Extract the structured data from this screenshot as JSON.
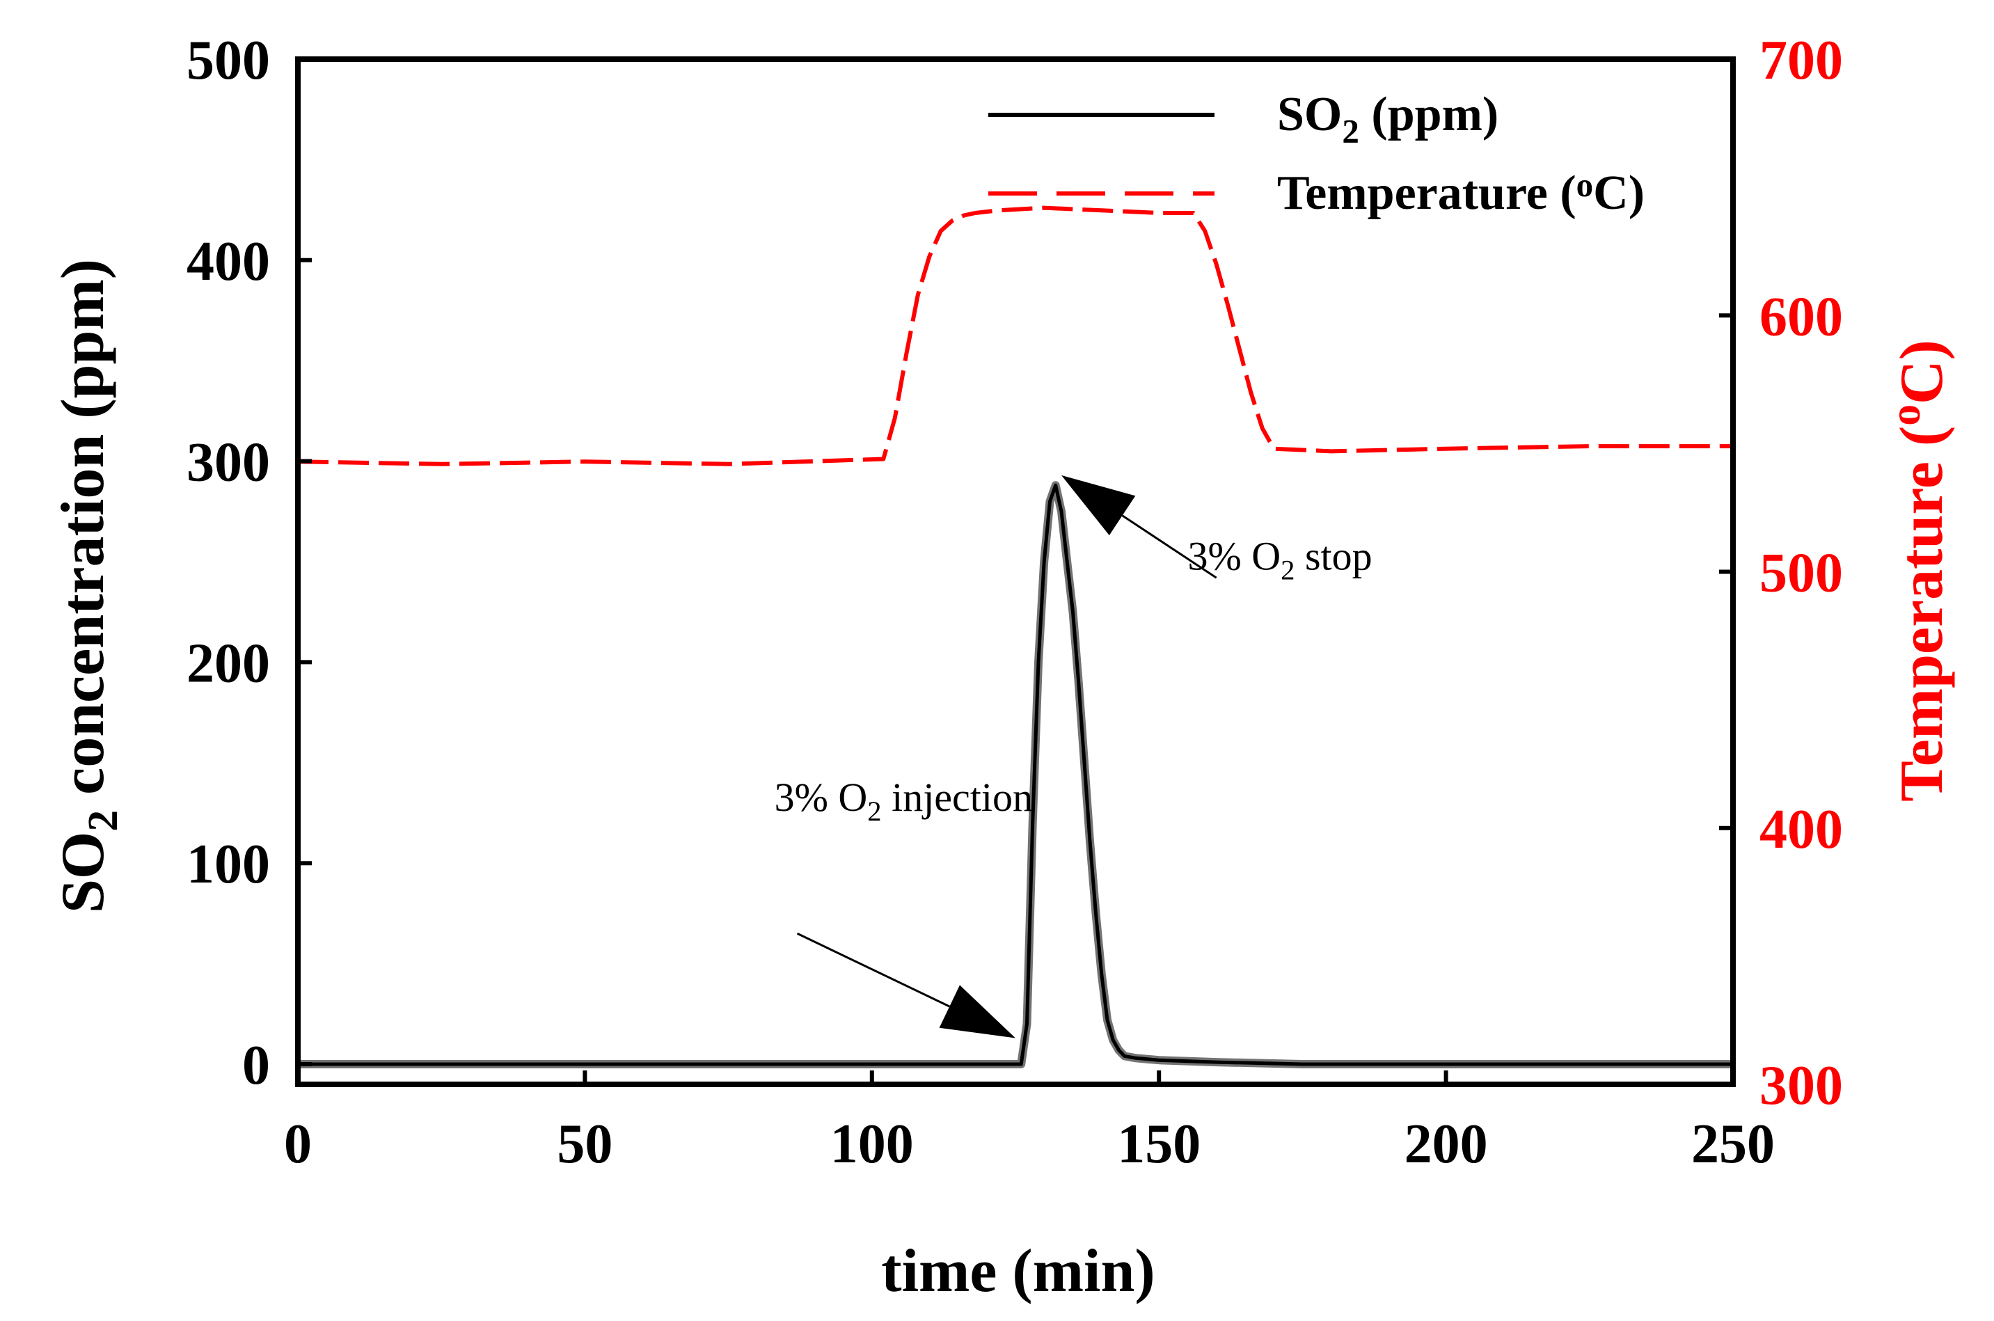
{
  "chart_data": {
    "type": "line",
    "xlabel": "time (min)",
    "ylabel": {
      "prefix": "SO",
      "sub": "2",
      "suffix": " concentration (ppm)"
    },
    "y2label": {
      "prefix": "Temperature (",
      "sup": "o",
      "suffix": "C)"
    },
    "xlim": [
      0,
      250
    ],
    "ylim": [
      0,
      500
    ],
    "y2lim": [
      300,
      700
    ],
    "xticks": [
      0,
      50,
      100,
      150,
      200,
      250
    ],
    "yticks": [
      0,
      100,
      200,
      300,
      400,
      500
    ],
    "y2ticks": [
      300,
      400,
      500,
      600,
      700
    ],
    "colors": {
      "so2": "#000000",
      "temperature": "#ff0000",
      "axis": "#000000"
    },
    "series": [
      {
        "name": "SO2 (ppm)",
        "legend": {
          "prefix": "SO",
          "sub": "2",
          "suffix": " (ppm)"
        },
        "axis": "left",
        "style": "solid",
        "x": [
          0,
          100,
          126,
          127,
          128,
          129,
          130,
          131,
          132,
          133,
          134,
          135,
          136,
          137,
          138,
          139,
          140,
          141,
          142,
          143,
          144,
          146,
          150,
          160,
          175,
          250
        ],
        "y": [
          0,
          0,
          0,
          20,
          120,
          200,
          250,
          280,
          288,
          275,
          250,
          225,
          190,
          150,
          110,
          75,
          45,
          22,
          12,
          7,
          4,
          3,
          2,
          1,
          0,
          0
        ]
      },
      {
        "name": "Temperature (oC)",
        "legend": {
          "prefix": "Temperature (",
          "sup": "o",
          "suffix": "C)"
        },
        "axis": "right",
        "style": "dashed",
        "x": [
          0,
          25,
          50,
          75,
          102,
          104,
          106,
          108,
          110,
          112,
          114,
          116,
          118,
          122,
          130,
          140,
          150,
          156,
          158,
          160,
          162,
          164,
          166,
          168,
          170,
          180,
          200,
          225,
          250
        ],
        "y": [
          543,
          542,
          543,
          542,
          544,
          560,
          585,
          608,
          623,
          633,
          637,
          639,
          640,
          641,
          642,
          641,
          640,
          640,
          633,
          620,
          604,
          587,
          570,
          556,
          548,
          547,
          548,
          549,
          549
        ]
      }
    ],
    "annotations": [
      {
        "id": "stop",
        "text": {
          "prefix": "3% O",
          "sub": "2",
          "suffix": " stop"
        },
        "x": 155,
        "y": 246,
        "arrow_from": [
          160,
          242
        ],
        "arrow_to": [
          133,
          293
        ]
      },
      {
        "id": "injection",
        "text": {
          "prefix": "3% O",
          "sub": "2",
          "suffix": " injection"
        },
        "x": 83,
        "y": 126,
        "arrow_from": [
          87,
          65
        ],
        "arrow_to": [
          125,
          13
        ]
      }
    ]
  }
}
